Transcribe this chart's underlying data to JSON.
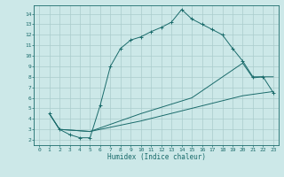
{
  "title": "",
  "xlabel": "Humidex (Indice chaleur)",
  "ylabel": "",
  "bg_color": "#cce8e8",
  "grid_color": "#aacccc",
  "line_color": "#1a6b6b",
  "xlim": [
    -0.5,
    23.5
  ],
  "ylim": [
    1.5,
    14.8
  ],
  "xticks": [
    0,
    1,
    2,
    3,
    4,
    5,
    6,
    7,
    8,
    9,
    10,
    11,
    12,
    13,
    14,
    15,
    16,
    17,
    18,
    19,
    20,
    21,
    22,
    23
  ],
  "yticks": [
    2,
    3,
    4,
    5,
    6,
    7,
    8,
    9,
    10,
    11,
    12,
    13,
    14
  ],
  "curve1_x": [
    1,
    2,
    3,
    4,
    5,
    6,
    7,
    8,
    9,
    10,
    11,
    12,
    13,
    14,
    15,
    16,
    17,
    18,
    19,
    20,
    21,
    22,
    23
  ],
  "curve1_y": [
    4.5,
    3.0,
    2.5,
    2.2,
    2.2,
    5.3,
    9.0,
    10.7,
    11.5,
    11.8,
    12.3,
    12.7,
    13.2,
    14.4,
    13.5,
    13.0,
    12.5,
    12.0,
    10.7,
    9.5,
    8.0,
    8.0,
    6.5
  ],
  "curve2_x": [
    1,
    2,
    5,
    10,
    15,
    20,
    21,
    22,
    23
  ],
  "curve2_y": [
    4.5,
    3.0,
    2.8,
    4.5,
    6.0,
    9.3,
    7.9,
    8.0,
    8.0
  ],
  "curve3_x": [
    1,
    2,
    5,
    10,
    15,
    20,
    23
  ],
  "curve3_y": [
    4.5,
    3.0,
    2.8,
    3.8,
    5.0,
    6.2,
    6.6
  ]
}
